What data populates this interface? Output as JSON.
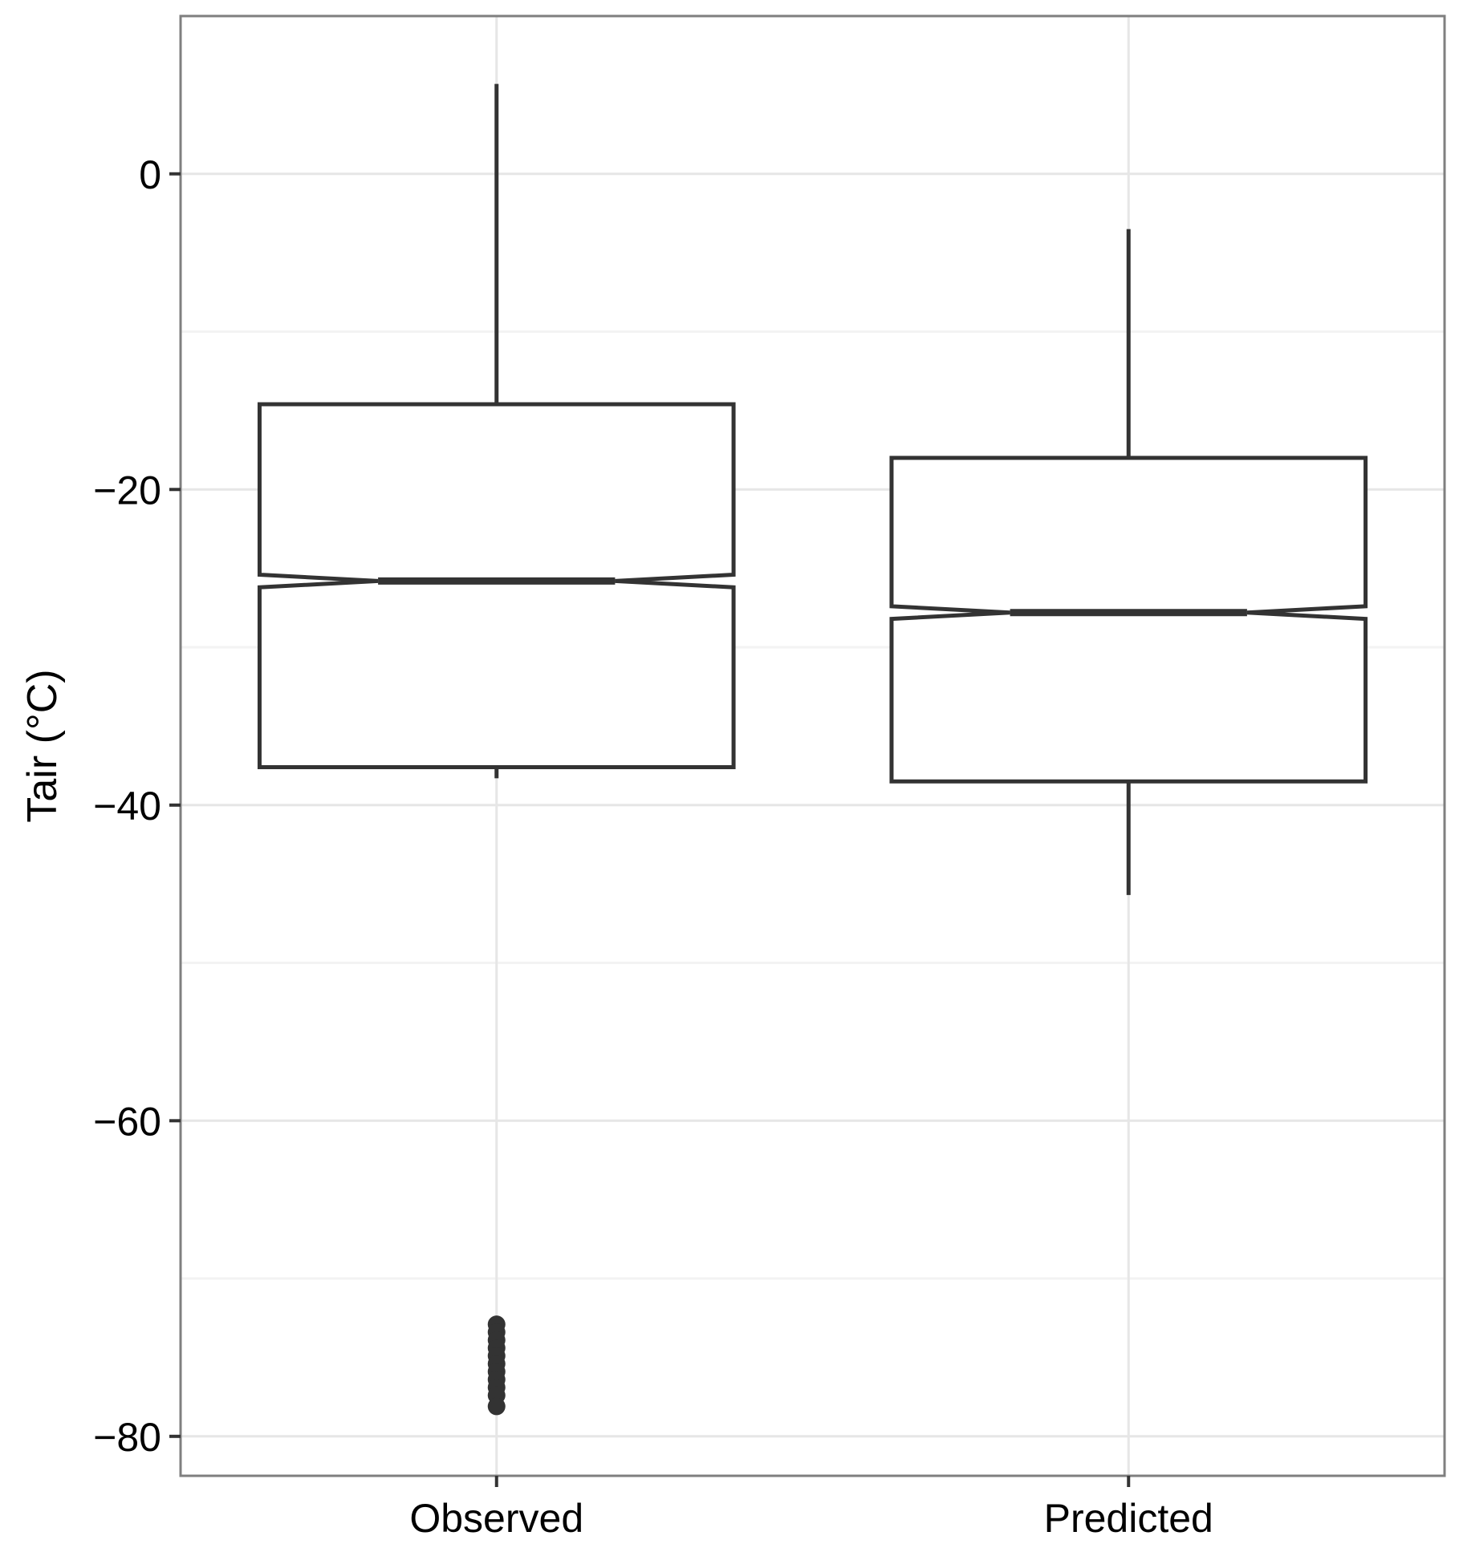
{
  "chart_data": {
    "type": "boxplot",
    "title": "",
    "xlabel": "",
    "ylabel": "Tair (°C)",
    "categories": [
      "Observed",
      "Predicted"
    ],
    "ylim": [
      -82.5,
      10
    ],
    "y_ticks": [
      0,
      -20,
      -40,
      -60,
      -80
    ],
    "y_tick_labels": [
      "0",
      "−20",
      "−40",
      "−60",
      "−80"
    ],
    "y_minor_grid": [
      -10,
      -30,
      -50,
      -70
    ],
    "grid": true,
    "notched": true,
    "boxes": [
      {
        "category": "Observed",
        "whisker_low": -38.3,
        "q1": -37.6,
        "median": -25.8,
        "q3": -14.6,
        "whisker_high": 5.7,
        "notch_low": -26.2,
        "notch_high": -25.4,
        "outliers": [
          -72.9,
          -73.4,
          -73.9,
          -74.4,
          -74.9,
          -75.4,
          -75.9,
          -76.4,
          -76.9,
          -77.4,
          -78.1
        ]
      },
      {
        "category": "Predicted",
        "whisker_low": -45.7,
        "q1": -38.5,
        "median": -27.8,
        "q3": -18.0,
        "whisker_high": -3.5,
        "notch_low": -28.2,
        "notch_high": -27.4,
        "outliers": []
      }
    ],
    "colors": {
      "box_stroke": "#333333",
      "panel_border": "#7f7f7f",
      "grid_major": "#e6e6e6",
      "grid_minor": "#f3f3f3"
    }
  }
}
